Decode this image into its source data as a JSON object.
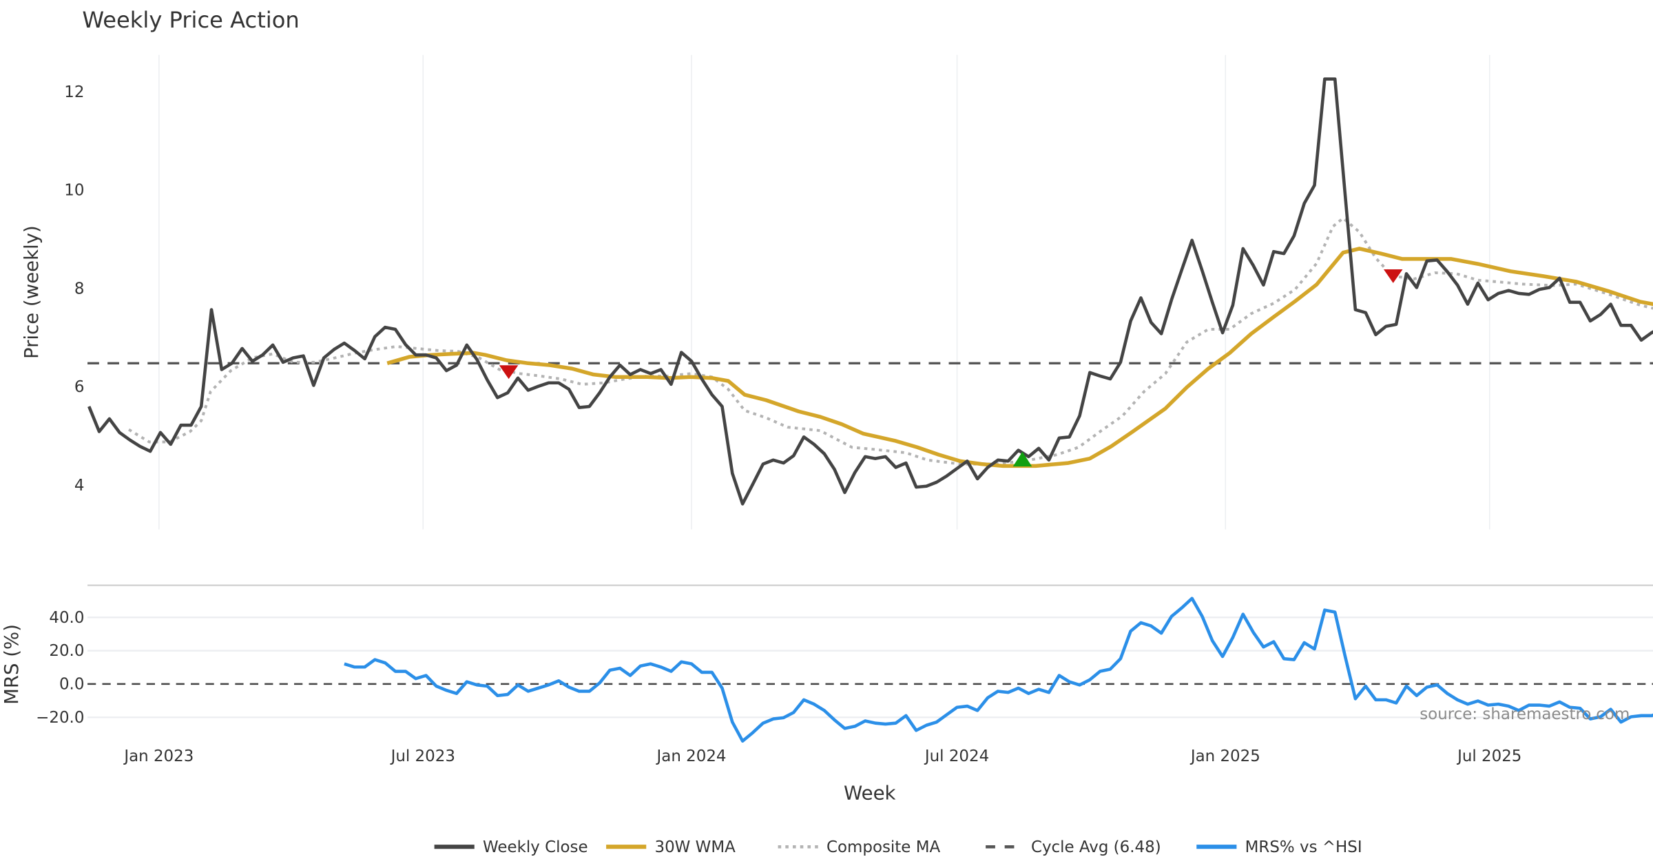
{
  "chart_data": {
    "type": "line",
    "title": "Weekly Price Action",
    "xlabel": "Week",
    "x_unit": "week index (weekly points starting at start_week)",
    "start_week": "2022-11-14",
    "interval_days": 7,
    "x_ticks": [
      {
        "label": "Jan 2023",
        "date": "2023-01-01"
      },
      {
        "label": "Jul 2023",
        "date": "2023-07-01"
      },
      {
        "label": "Jan 2024",
        "date": "2024-01-01"
      },
      {
        "label": "Jul 2024",
        "date": "2024-07-01"
      },
      {
        "label": "Jan 2025",
        "date": "2025-01-01"
      },
      {
        "label": "Jul 2025",
        "date": "2025-07-01"
      }
    ],
    "x_range": [
      "2022-11-13",
      "2025-10-21"
    ],
    "source": "source: sharemaestro.com",
    "price_panel": {
      "ylabel": "Price (weekly)",
      "ylim": [
        3.1,
        12.75
      ],
      "y_ticks": [
        4,
        6,
        8,
        10,
        12
      ],
      "cycle_avg": 6.48,
      "weekly_close": [
        5.6,
        5.09,
        5.35,
        5.07,
        4.92,
        4.79,
        4.69,
        5.07,
        4.83,
        5.22,
        5.22,
        5.6,
        7.57,
        6.35,
        6.48,
        6.78,
        6.52,
        6.65,
        6.85,
        6.5,
        6.59,
        6.63,
        6.03,
        6.59,
        6.76,
        6.89,
        6.74,
        6.57,
        7.02,
        7.21,
        7.17,
        6.86,
        6.65,
        6.65,
        6.59,
        6.33,
        6.44,
        6.85,
        6.55,
        6.14,
        5.78,
        5.88,
        6.18,
        5.93,
        6.01,
        6.08,
        6.08,
        5.95,
        5.58,
        5.6,
        5.88,
        6.2,
        6.44,
        6.25,
        6.35,
        6.27,
        6.35,
        6.05,
        6.7,
        6.52,
        6.16,
        5.84,
        5.6,
        4.24,
        3.62,
        4.02,
        4.43,
        4.51,
        4.45,
        4.6,
        4.98,
        4.83,
        4.64,
        4.32,
        3.85,
        4.26,
        4.58,
        4.54,
        4.58,
        4.36,
        4.45,
        3.96,
        3.98,
        4.06,
        4.19,
        4.34,
        4.49,
        4.13,
        4.36,
        4.51,
        4.49,
        4.71,
        4.58,
        4.75,
        4.51,
        4.96,
        4.98,
        5.41,
        6.29,
        6.22,
        6.16,
        6.5,
        7.34,
        7.81,
        7.31,
        7.08,
        7.77,
        8.38,
        8.98,
        8.36,
        7.72,
        7.1,
        7.66,
        8.81,
        8.47,
        8.07,
        8.75,
        8.71,
        9.07,
        9.73,
        10.1,
        12.26,
        12.26,
        9.9,
        7.57,
        7.51,
        7.06,
        7.23,
        7.27,
        8.3,
        8.02,
        8.56,
        8.58,
        8.34,
        8.07,
        7.68,
        8.11,
        7.77,
        7.9,
        7.96,
        7.9,
        7.88,
        7.98,
        8.02,
        8.21,
        7.72,
        7.72,
        7.34,
        7.47,
        7.68,
        7.25,
        7.25,
        6.95,
        7.1,
        7.21,
        7.23,
        7.27
      ],
      "wma_30w": [
        [
          29.2,
          6.48
        ],
        [
          31.4,
          6.61
        ],
        [
          33.5,
          6.65
        ],
        [
          35.6,
          6.67
        ],
        [
          37.7,
          6.69
        ],
        [
          38.8,
          6.65
        ],
        [
          40.9,
          6.54
        ],
        [
          43.0,
          6.48
        ],
        [
          45.1,
          6.44
        ],
        [
          47.3,
          6.37
        ],
        [
          49.4,
          6.25
        ],
        [
          51.5,
          6.2
        ],
        [
          54.7,
          6.2
        ],
        [
          56.8,
          6.18
        ],
        [
          58.9,
          6.2
        ],
        [
          61.0,
          6.18
        ],
        [
          62.6,
          6.12
        ],
        [
          64.2,
          5.84
        ],
        [
          66.3,
          5.73
        ],
        [
          69.5,
          5.5
        ],
        [
          71.6,
          5.39
        ],
        [
          73.7,
          5.24
        ],
        [
          75.8,
          5.05
        ],
        [
          79.0,
          4.9
        ],
        [
          81.1,
          4.77
        ],
        [
          83.2,
          4.62
        ],
        [
          85.3,
          4.49
        ],
        [
          87.4,
          4.43
        ],
        [
          89.5,
          4.39
        ],
        [
          92.7,
          4.39
        ],
        [
          95.9,
          4.45
        ],
        [
          98.0,
          4.54
        ],
        [
          100.1,
          4.79
        ],
        [
          102.2,
          5.09
        ],
        [
          105.4,
          5.56
        ],
        [
          107.5,
          5.99
        ],
        [
          109.6,
          6.37
        ],
        [
          111.7,
          6.69
        ],
        [
          113.8,
          7.08
        ],
        [
          116.0,
          7.42
        ],
        [
          118.1,
          7.74
        ],
        [
          120.2,
          8.08
        ],
        [
          122.8,
          8.73
        ],
        [
          124.4,
          8.81
        ],
        [
          126.5,
          8.71
        ],
        [
          128.6,
          8.6
        ],
        [
          130.8,
          8.6
        ],
        [
          133.4,
          8.6
        ],
        [
          136.0,
          8.5
        ],
        [
          139.2,
          8.35
        ],
        [
          142.4,
          8.25
        ],
        [
          145.6,
          8.14
        ],
        [
          148.7,
          7.95
        ],
        [
          151.9,
          7.73
        ],
        [
          155.0,
          7.61
        ],
        [
          156.9,
          7.59
        ]
      ],
      "composite_ma": [
        [
          3.9,
          5.13
        ],
        [
          5.9,
          4.88
        ],
        [
          7.9,
          4.88
        ],
        [
          9.9,
          5.09
        ],
        [
          11.0,
          5.31
        ],
        [
          11.9,
          5.9
        ],
        [
          13.9,
          6.33
        ],
        [
          16.0,
          6.59
        ],
        [
          18.0,
          6.67
        ],
        [
          20.0,
          6.5
        ],
        [
          22.1,
          6.5
        ],
        [
          24.1,
          6.59
        ],
        [
          26.1,
          6.69
        ],
        [
          28.1,
          6.76
        ],
        [
          30.1,
          6.82
        ],
        [
          32.1,
          6.78
        ],
        [
          34.1,
          6.74
        ],
        [
          36.2,
          6.72
        ],
        [
          38.2,
          6.59
        ],
        [
          40.2,
          6.35
        ],
        [
          42.2,
          6.27
        ],
        [
          44.2,
          6.22
        ],
        [
          46.2,
          6.16
        ],
        [
          48.3,
          6.05
        ],
        [
          50.4,
          6.08
        ],
        [
          52.5,
          6.16
        ],
        [
          54.7,
          6.22
        ],
        [
          56.8,
          6.22
        ],
        [
          58.9,
          6.27
        ],
        [
          61.0,
          6.2
        ],
        [
          62.6,
          5.95
        ],
        [
          64.2,
          5.52
        ],
        [
          66.3,
          5.37
        ],
        [
          68.4,
          5.18
        ],
        [
          71.6,
          5.11
        ],
        [
          74.7,
          4.77
        ],
        [
          76.8,
          4.73
        ],
        [
          80.0,
          4.66
        ],
        [
          82.1,
          4.51
        ],
        [
          85.3,
          4.43
        ],
        [
          88.5,
          4.43
        ],
        [
          91.6,
          4.49
        ],
        [
          94.8,
          4.62
        ],
        [
          96.9,
          4.77
        ],
        [
          99.0,
          5.09
        ],
        [
          101.2,
          5.41
        ],
        [
          103.3,
          5.9
        ],
        [
          105.4,
          6.27
        ],
        [
          107.5,
          6.91
        ],
        [
          109.6,
          7.17
        ],
        [
          111.7,
          7.17
        ],
        [
          113.8,
          7.49
        ],
        [
          116.0,
          7.7
        ],
        [
          118.1,
          7.98
        ],
        [
          120.2,
          8.51
        ],
        [
          121.8,
          9.26
        ],
        [
          122.8,
          9.43
        ],
        [
          124.4,
          9.15
        ],
        [
          126.0,
          8.62
        ],
        [
          127.6,
          8.26
        ],
        [
          129.7,
          8.19
        ],
        [
          131.8,
          8.32
        ],
        [
          133.9,
          8.3
        ],
        [
          136.0,
          8.17
        ],
        [
          138.2,
          8.13
        ],
        [
          140.3,
          8.09
        ],
        [
          143.5,
          8.06
        ],
        [
          145.6,
          8.09
        ],
        [
          148.7,
          7.89
        ],
        [
          151.9,
          7.66
        ],
        [
          155.0,
          7.51
        ],
        [
          156.9,
          7.49
        ]
      ],
      "signals": [
        {
          "type": "sell",
          "week": 41.1,
          "price": 6.31
        },
        {
          "type": "buy",
          "week": 91.4,
          "price": 4.51
        },
        {
          "type": "sell",
          "week": 127.7,
          "price": 8.26
        }
      ]
    },
    "mrs_panel": {
      "ylabel": "MRS (%)",
      "ylim": [
        -37,
        58
      ],
      "y_ticks": [
        {
          "v": 40,
          "label": "40.0"
        },
        {
          "v": 20,
          "label": "20.0"
        },
        {
          "v": 0,
          "label": "0.0"
        },
        {
          "v": -20,
          "label": "−20.0"
        }
      ],
      "start_week_index": 25,
      "values": [
        12.1,
        10.2,
        10.2,
        14.6,
        12.7,
        7.6,
        7.6,
        3.2,
        5.1,
        -1.3,
        -3.8,
        -5.7,
        1.3,
        -0.6,
        -1.3,
        -7.0,
        -6.3,
        -0.6,
        -4.4,
        -2.5,
        -0.6,
        1.9,
        -1.9,
        -4.4,
        -4.4,
        0.6,
        8.3,
        9.5,
        5.1,
        10.8,
        12.1,
        10.2,
        7.6,
        13.3,
        12.1,
        7.0,
        7.0,
        -2.5,
        -22.9,
        -34.3,
        -29.2,
        -23.5,
        -21.0,
        -20.3,
        -17.1,
        -9.5,
        -12.1,
        -15.9,
        -21.6,
        -26.7,
        -25.4,
        -22.2,
        -23.5,
        -24.1,
        -23.5,
        -19.0,
        -27.9,
        -24.8,
        -22.9,
        -18.4,
        -14.0,
        -13.3,
        -15.9,
        -8.3,
        -4.4,
        -5.1,
        -2.5,
        -5.7,
        -3.2,
        -5.1,
        5.1,
        1.3,
        -0.6,
        2.5,
        7.6,
        8.9,
        15.2,
        31.7,
        36.8,
        34.9,
        30.5,
        40.6,
        45.7,
        51.4,
        40.6,
        26.0,
        16.5,
        27.9,
        41.9,
        31.1,
        22.2,
        25.4,
        15.2,
        14.6,
        24.8,
        21.0,
        44.4,
        43.2,
        16.5,
        -8.9,
        -1.3,
        -9.5,
        -9.5,
        -11.4,
        -1.3,
        -7.0,
        -1.9,
        -0.6,
        -5.7,
        -9.5,
        -12.1,
        -10.2,
        -12.7,
        -12.1,
        -13.3,
        -15.9,
        -12.7,
        -12.7,
        -13.3,
        -10.8,
        -14.0,
        -14.6,
        -21.0,
        -19.7,
        -15.2,
        -22.9,
        -19.7,
        -19.0,
        -19.0,
        -17.1,
        -14.6,
        -15.9
      ]
    },
    "legend": {
      "placement": "bottom-center",
      "entries": [
        {
          "label": "Weekly Close",
          "color": "#444444",
          "style": "solid"
        },
        {
          "label": "30W WMA",
          "color": "#d4a62a",
          "style": "solid"
        },
        {
          "label": "Composite MA",
          "color": "#b3b3b3",
          "style": "dotted"
        },
        {
          "label": "Cycle Avg (6.48)",
          "color": "#555555",
          "style": "dashed"
        },
        {
          "label": "MRS% vs ^HSI",
          "color": "#2b8fe8",
          "style": "solid"
        }
      ]
    },
    "colors": {
      "sell": "#cc1111",
      "buy": "#11a011",
      "grid": "#eceef1"
    }
  }
}
